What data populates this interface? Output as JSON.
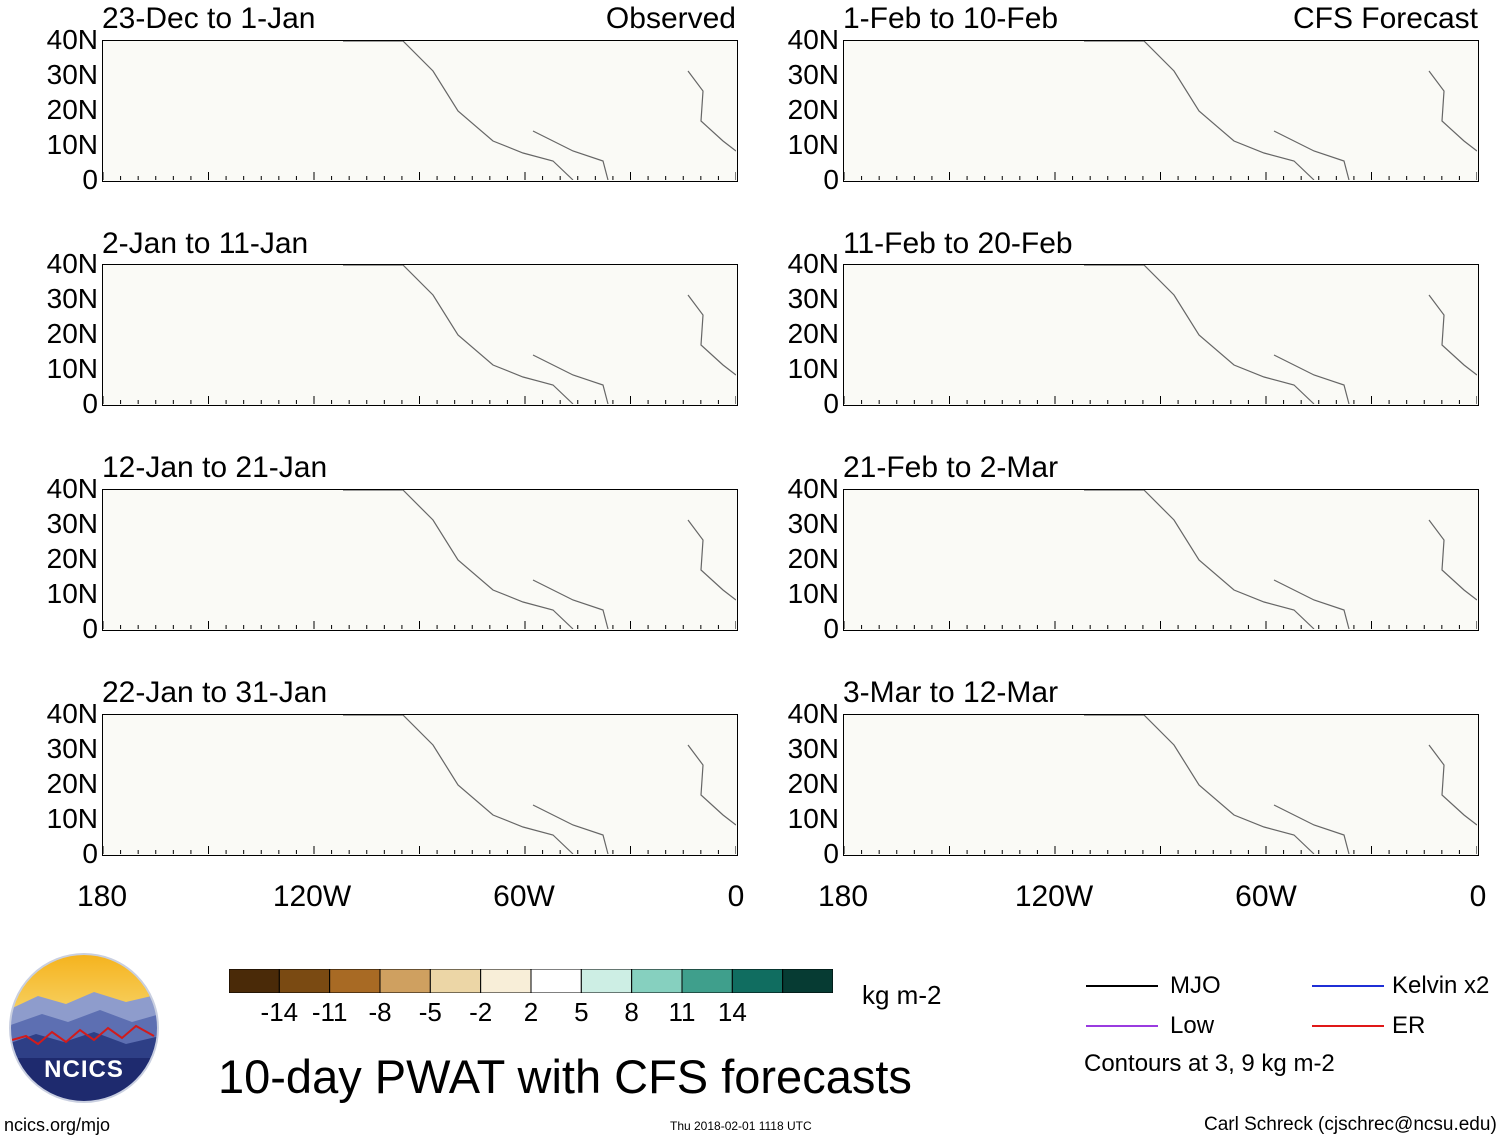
{
  "title": "10-day PWAT with CFS forecasts",
  "panels_left_header": "Observed",
  "panels_right_header": "CFS Forecast",
  "left_panels": [
    {
      "title": "23-Dec to 1-Jan"
    },
    {
      "title": "2-Jan to 11-Jan"
    },
    {
      "title": "12-Jan to 21-Jan"
    },
    {
      "title": "22-Jan to 31-Jan"
    }
  ],
  "right_panels": [
    {
      "title": "1-Feb to 10-Feb"
    },
    {
      "title": "11-Feb to 20-Feb"
    },
    {
      "title": "21-Feb to 2-Mar"
    },
    {
      "title": "3-Mar to 12-Mar"
    }
  ],
  "lat_labels": [
    "40N",
    "30N",
    "20N",
    "10N",
    "0"
  ],
  "lon_labels": [
    "180",
    "120W",
    "60W",
    "0"
  ],
  "colorbar": {
    "labels": [
      "-14",
      "-11",
      "-8",
      "-5",
      "-2",
      "2",
      "5",
      "8",
      "11",
      "14"
    ],
    "colors": [
      "#4a2a08",
      "#7a4a12",
      "#a86a24",
      "#cfa060",
      "#ecd6a6",
      "#f8eed8",
      "#ffffff",
      "#cdeee4",
      "#86d0bf",
      "#3f9f8c",
      "#106d60",
      "#063b33"
    ],
    "units": "kg m-2"
  },
  "legend": {
    "mjo": "MJO",
    "kelvin": "Kelvin x2",
    "low": "Low",
    "er": "ER",
    "contours_note": "Contours at 3, 9 kg m-2",
    "colors": {
      "mjo": "#000000",
      "kelvin": "#1f2fd6",
      "low": "#9a3be0",
      "er": "#e01818"
    }
  },
  "logo_text": "NCICS",
  "footer": {
    "left": "ncics.org/mjo",
    "center": "Thu 2018-02-01 1118 UTC",
    "right": "Carl Schreck (cjschrec@ncsu.edu)"
  }
}
